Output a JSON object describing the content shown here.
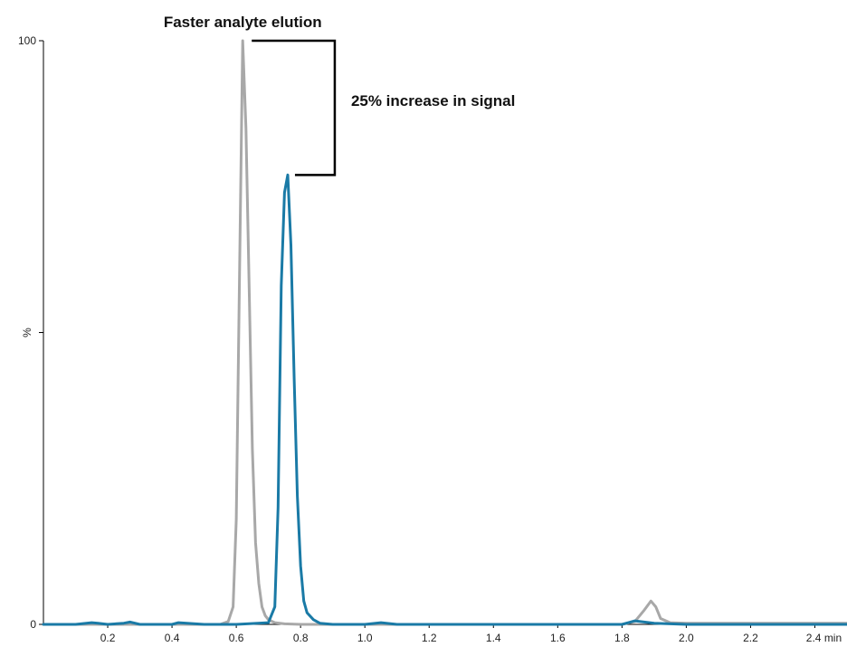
{
  "chart_data": {
    "type": "line",
    "title": "",
    "xlabel": "",
    "ylabel": "%",
    "xlim": [
      0,
      2.5
    ],
    "ylim": [
      0,
      100
    ],
    "x_unit": "min",
    "grid": false,
    "x_ticks": [
      0.2,
      0.4,
      0.6,
      0.8,
      1.0,
      1.2,
      1.4,
      1.6,
      1.8,
      2.0,
      2.2,
      2.4
    ],
    "x_tick_labels": [
      "0.2",
      "0.4",
      "0.6",
      "0.8",
      "1.0",
      "1.2",
      "1.4",
      "1.6",
      "1.8",
      "2.0",
      "2.2",
      "2.4"
    ],
    "y_ticks": [
      0,
      50,
      100
    ],
    "y_tick_labels": [
      "0",
      "%",
      "100"
    ],
    "series": [
      {
        "color": "#a8a8a8",
        "x": [
          0.0,
          0.1,
          0.2,
          0.3,
          0.4,
          0.5,
          0.55,
          0.575,
          0.59,
          0.6,
          0.61,
          0.62,
          0.63,
          0.64,
          0.65,
          0.66,
          0.67,
          0.68,
          0.69,
          0.7,
          0.72,
          0.75,
          0.8,
          1.0,
          1.2,
          1.4,
          1.6,
          1.8,
          1.84,
          1.87,
          1.89,
          1.905,
          1.92,
          1.95,
          2.0,
          2.2,
          2.5
        ],
        "y": [
          0,
          0,
          0,
          0,
          0,
          0,
          0,
          0.5,
          3,
          18,
          60,
          100,
          85,
          58,
          30,
          14,
          7,
          3,
          1.5,
          0.8,
          0.3,
          0.1,
          0,
          0,
          0,
          0,
          0,
          0,
          0.5,
          2.5,
          4,
          3,
          1,
          0.3,
          0.2,
          0.2,
          0.2
        ]
      },
      {
        "color": "#1a7aa6",
        "x": [
          0.0,
          0.1,
          0.15,
          0.17,
          0.2,
          0.25,
          0.27,
          0.3,
          0.4,
          0.42,
          0.5,
          0.6,
          0.7,
          0.72,
          0.73,
          0.74,
          0.75,
          0.76,
          0.77,
          0.78,
          0.79,
          0.8,
          0.81,
          0.82,
          0.84,
          0.86,
          0.9,
          1.0,
          1.05,
          1.1,
          1.2,
          1.4,
          1.6,
          1.8,
          1.82,
          1.84,
          1.9,
          2.0,
          2.5
        ],
        "y": [
          0,
          0,
          0.3,
          0.2,
          0,
          0.2,
          0.4,
          0,
          0,
          0.3,
          0,
          0,
          0.3,
          3,
          20,
          58,
          74,
          77,
          65,
          42,
          22,
          10,
          4,
          2,
          0.8,
          0.2,
          0,
          0,
          0.3,
          0,
          0,
          0,
          0,
          0,
          0.3,
          0.6,
          0.2,
          0,
          0
        ]
      }
    ],
    "annotations": [
      {
        "text": "Faster analyte elution"
      },
      {
        "text": "25% increase in signal"
      }
    ]
  }
}
